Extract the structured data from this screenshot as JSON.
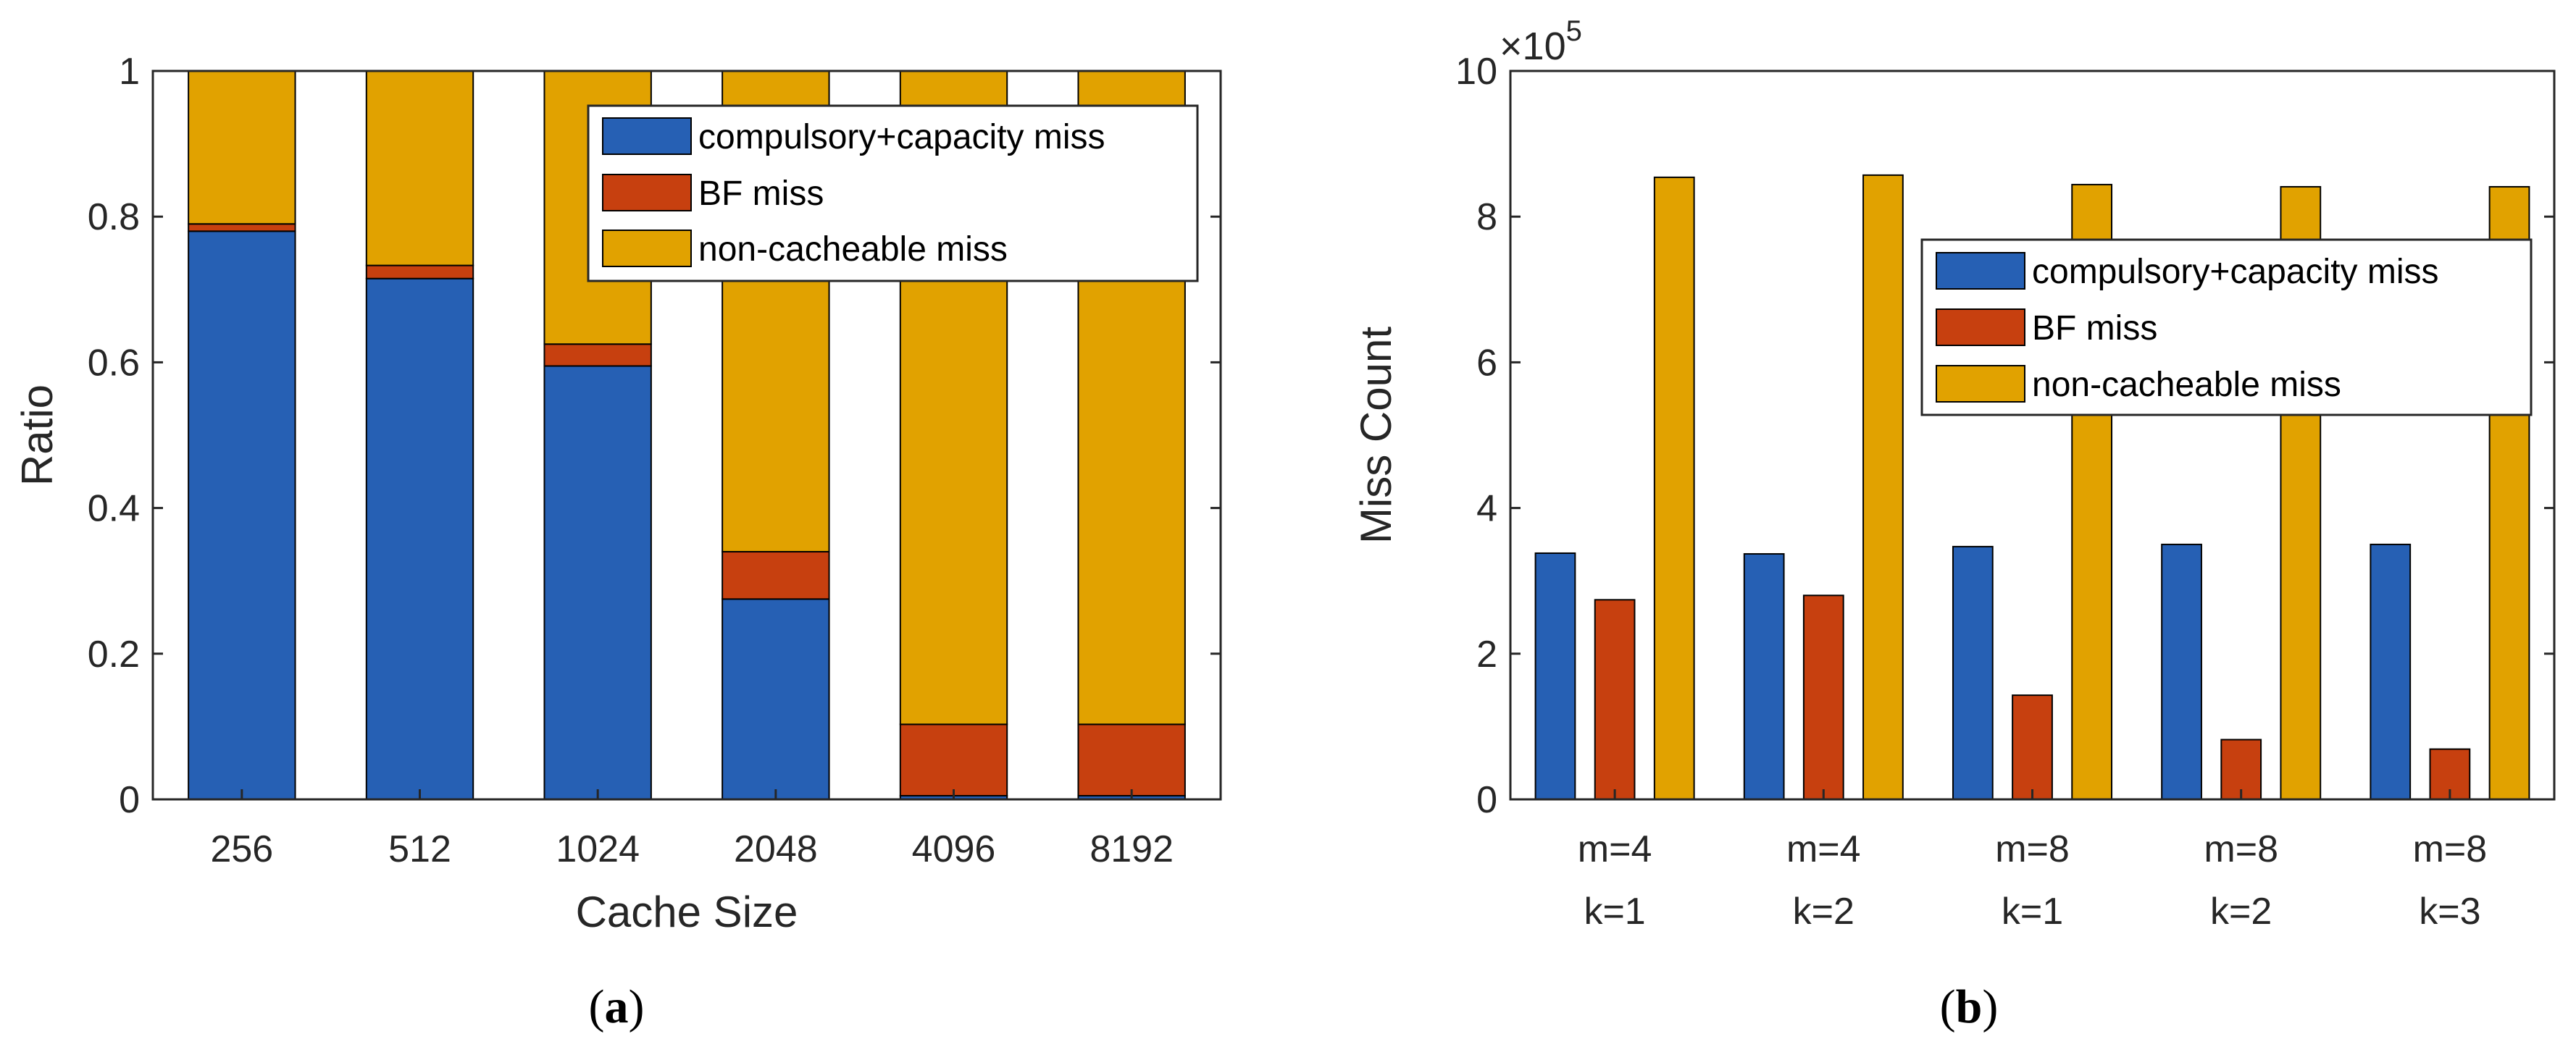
{
  "colors": {
    "compulsory": "#2660b4",
    "bf": "#c7400f",
    "noncacheable": "#e1a200",
    "axis": "#262626"
  },
  "panel_labels": {
    "a": "(a)",
    "b": "(b)"
  },
  "chart_data": [
    {
      "type": "bar",
      "stacked": true,
      "title": "",
      "xlabel": "Cache Size",
      "ylabel": "Ratio",
      "ylim": [
        0,
        1
      ],
      "yticks": [
        0,
        0.2,
        0.4,
        0.6,
        0.8,
        1
      ],
      "ytick_labels": [
        "0",
        "0.2",
        "0.4",
        "0.6",
        "0.8",
        "1"
      ],
      "categories": [
        "256",
        "512",
        "1024",
        "2048",
        "4096",
        "8192"
      ],
      "series": [
        {
          "name": "compulsory+capacity miss",
          "color_key": "compulsory",
          "values": [
            0.78,
            0.715,
            0.595,
            0.275,
            0.005,
            0.005
          ]
        },
        {
          "name": "BF miss",
          "color_key": "bf",
          "values": [
            0.01,
            0.018,
            0.03,
            0.065,
            0.098,
            0.098
          ]
        },
        {
          "name": "non-cacheable miss",
          "color_key": "noncacheable",
          "values": [
            0.21,
            0.267,
            0.375,
            0.66,
            0.897,
            0.897
          ]
        }
      ],
      "legend": {
        "position": "top-right",
        "entries": [
          "compulsory+capacity miss",
          "BF miss",
          "non-cacheable miss"
        ]
      }
    },
    {
      "type": "bar",
      "stacked": false,
      "title": "",
      "xlabel": "",
      "ylabel": "Miss Count",
      "ylim": [
        0,
        1000000
      ],
      "yticks": [
        0,
        200000,
        400000,
        600000,
        800000,
        1000000
      ],
      "ytick_labels": [
        "0",
        "2",
        "4",
        "6",
        "8",
        "10"
      ],
      "exponent": {
        "base": "×10",
        "power": "5"
      },
      "categories": [
        {
          "line1": "m=4",
          "line2": "k=1"
        },
        {
          "line1": "m=4",
          "line2": "k=2"
        },
        {
          "line1": "m=8",
          "line2": "k=1"
        },
        {
          "line1": "m=8",
          "line2": "k=2"
        },
        {
          "line1": "m=8",
          "line2": "k=3"
        }
      ],
      "series": [
        {
          "name": "compulsory+capacity miss",
          "color_key": "compulsory",
          "values": [
            338000,
            337000,
            347000,
            350000,
            350000
          ]
        },
        {
          "name": "BF miss",
          "color_key": "bf",
          "values": [
            274000,
            280000,
            143000,
            82000,
            69000
          ]
        },
        {
          "name": "non-cacheable miss",
          "color_key": "noncacheable",
          "values": [
            854000,
            857000,
            844000,
            841000,
            841000
          ]
        }
      ],
      "legend": {
        "position": "upper-right",
        "entries": [
          "compulsory+capacity miss",
          "BF miss",
          "non-cacheable miss"
        ]
      }
    }
  ]
}
